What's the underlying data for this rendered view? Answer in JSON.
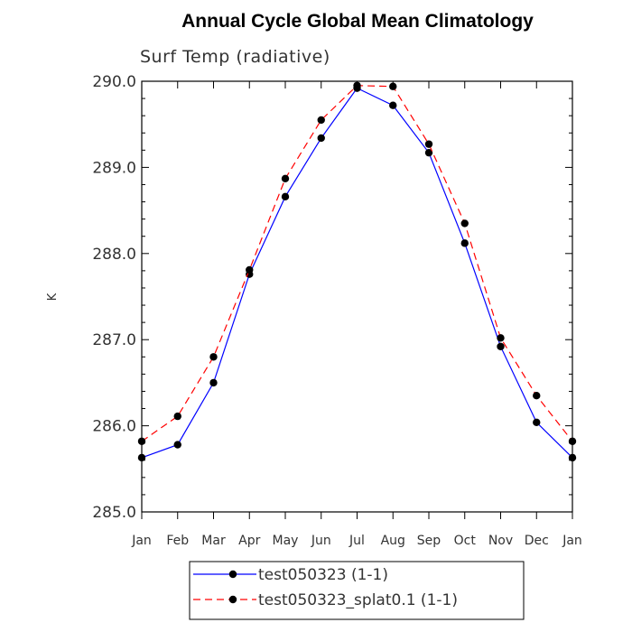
{
  "chart_data": {
    "type": "line",
    "title": "Annual Cycle Global Mean Climatology",
    "subtitle": "Surf Temp (radiative)",
    "xlabel": "",
    "ylabel": "K",
    "ylim": [
      285.0,
      290.0
    ],
    "yticks": [
      "285.0",
      "286.0",
      "287.0",
      "288.0",
      "289.0",
      "290.0"
    ],
    "categories": [
      "Jan",
      "Feb",
      "Mar",
      "Apr",
      "May",
      "Jun",
      "Jul",
      "Aug",
      "Sep",
      "Oct",
      "Nov",
      "Dec",
      "Jan"
    ],
    "grid": false,
    "legend_position": "bottom-center",
    "series": [
      {
        "name": "test050323 (1-1)",
        "color": "#0000ff",
        "dash": "solid",
        "marker": "filled-circle",
        "values": [
          285.63,
          285.78,
          286.5,
          287.76,
          288.66,
          289.34,
          289.92,
          289.72,
          289.17,
          288.12,
          286.92,
          286.04,
          285.63
        ]
      },
      {
        "name": "test050323_splat0.1 (1-1)",
        "color": "#ff0000",
        "dash": "dashed",
        "marker": "filled-circle",
        "values": [
          285.82,
          286.11,
          286.8,
          287.81,
          288.87,
          289.55,
          289.95,
          289.94,
          289.27,
          288.35,
          287.02,
          286.35,
          285.82
        ]
      }
    ]
  }
}
